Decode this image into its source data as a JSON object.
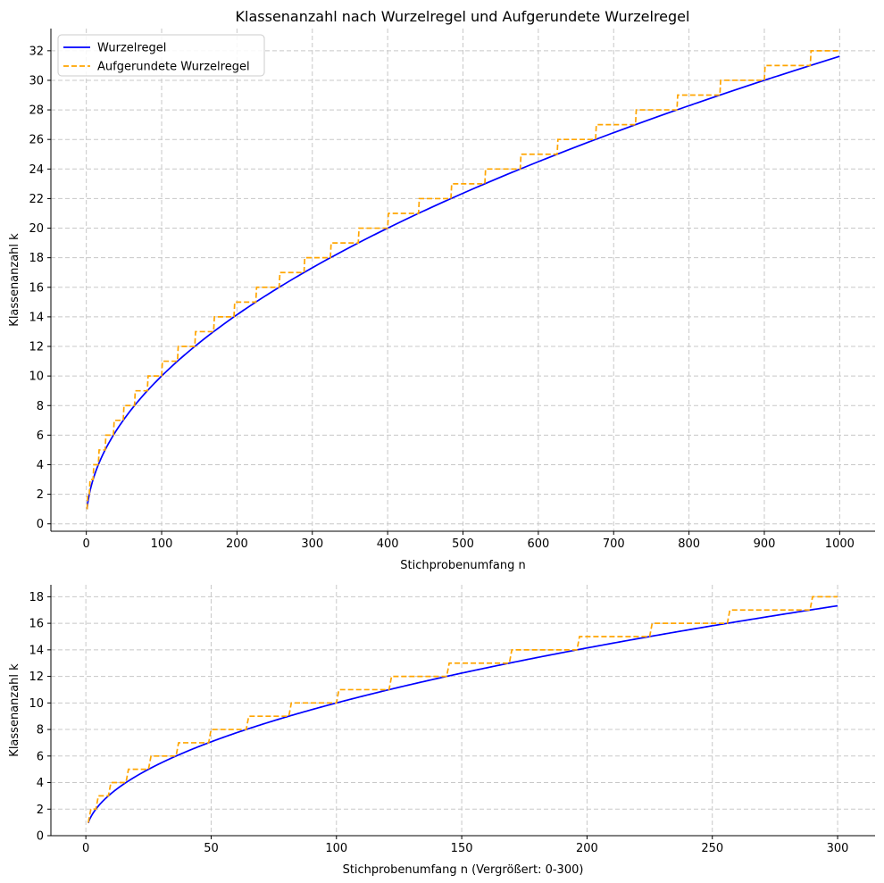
{
  "figure": {
    "title": "Klassenanzahl nach Wurzelregel und Aufgerundete Wurzelregel"
  },
  "chart_data": [
    {
      "type": "line",
      "title": "Klassenanzahl nach Wurzelregel und Aufgerundete Wurzelregel",
      "xlabel": "Stichprobenumfang n",
      "ylabel": "Klassenanzahl k",
      "xlim": [
        -47,
        1047
      ],
      "ylim": [
        -0.5,
        33.5
      ],
      "xticks": [
        0,
        100,
        200,
        300,
        400,
        500,
        600,
        700,
        800,
        900,
        1000
      ],
      "yticks": [
        0,
        2,
        4,
        6,
        8,
        10,
        12,
        14,
        16,
        18,
        20,
        22,
        24,
        26,
        28,
        30,
        32
      ],
      "n_range": [
        1,
        1000
      ],
      "grid": true,
      "legend": "top-left",
      "series": [
        {
          "name": "Wurzelregel",
          "formula": "k = sqrt(n)",
          "style": "solid",
          "color": "#0000ff",
          "points": [
            [
              1,
              1
            ],
            [
              4,
              2
            ],
            [
              9,
              3
            ],
            [
              16,
              4
            ],
            [
              25,
              5
            ],
            [
              36,
              6
            ],
            [
              49,
              7
            ],
            [
              64,
              8
            ],
            [
              81,
              9
            ],
            [
              100,
              10
            ],
            [
              121,
              11
            ],
            [
              144,
              12
            ],
            [
              169,
              13
            ],
            [
              196,
              14
            ],
            [
              225,
              15
            ],
            [
              256,
              16
            ],
            [
              289,
              17
            ],
            [
              324,
              18
            ],
            [
              361,
              19
            ],
            [
              400,
              20
            ],
            [
              441,
              21
            ],
            [
              484,
              22
            ],
            [
              529,
              23
            ],
            [
              576,
              24
            ],
            [
              625,
              25
            ],
            [
              676,
              26
            ],
            [
              729,
              27
            ],
            [
              784,
              28
            ],
            [
              841,
              29
            ],
            [
              900,
              30
            ],
            [
              961,
              31
            ],
            [
              1000,
              31.62
            ]
          ]
        },
        {
          "name": "Aufgerundete Wurzelregel",
          "formula": "k = ceil(sqrt(n))",
          "style": "dashed",
          "color": "#ffa500",
          "steps": [
            [
              1,
              1
            ],
            [
              2,
              2
            ],
            [
              5,
              3
            ],
            [
              10,
              4
            ],
            [
              17,
              5
            ],
            [
              26,
              6
            ],
            [
              37,
              7
            ],
            [
              50,
              8
            ],
            [
              65,
              9
            ],
            [
              82,
              10
            ],
            [
              101,
              11
            ],
            [
              122,
              12
            ],
            [
              145,
              13
            ],
            [
              170,
              14
            ],
            [
              197,
              15
            ],
            [
              226,
              16
            ],
            [
              257,
              17
            ],
            [
              290,
              18
            ],
            [
              325,
              19
            ],
            [
              362,
              20
            ],
            [
              401,
              21
            ],
            [
              442,
              22
            ],
            [
              485,
              23
            ],
            [
              530,
              24
            ],
            [
              577,
              25
            ],
            [
              626,
              26
            ],
            [
              677,
              27
            ],
            [
              730,
              28
            ],
            [
              785,
              29
            ],
            [
              842,
              30
            ],
            [
              901,
              31
            ],
            [
              962,
              32
            ]
          ]
        }
      ]
    },
    {
      "type": "line",
      "title": "",
      "xlabel": "Stichprobenumfang n (Vergrößert: 0-300)",
      "ylabel": "Klassenanzahl k",
      "xlim": [
        -13.95,
        314.95
      ],
      "ylim": [
        0,
        18.9
      ],
      "xticks": [
        0,
        50,
        100,
        150,
        200,
        250,
        300
      ],
      "yticks": [
        0,
        2,
        4,
        6,
        8,
        10,
        12,
        14,
        16,
        18
      ],
      "n_range": [
        1,
        300
      ],
      "grid": true,
      "legend": "none",
      "series": [
        {
          "name": "Wurzelregel",
          "formula": "k = sqrt(n)",
          "style": "solid",
          "color": "#0000ff",
          "points": [
            [
              1,
              1
            ],
            [
              4,
              2
            ],
            [
              9,
              3
            ],
            [
              16,
              4
            ],
            [
              25,
              5
            ],
            [
              36,
              6
            ],
            [
              49,
              7
            ],
            [
              64,
              8
            ],
            [
              81,
              9
            ],
            [
              100,
              10
            ],
            [
              121,
              11
            ],
            [
              144,
              12
            ],
            [
              169,
              13
            ],
            [
              196,
              14
            ],
            [
              225,
              15
            ],
            [
              256,
              16
            ],
            [
              289,
              17
            ],
            [
              300,
              17.32
            ]
          ]
        },
        {
          "name": "Aufgerundete Wurzelregel",
          "formula": "k = ceil(sqrt(n))",
          "style": "dashed",
          "color": "#ffa500",
          "steps": [
            [
              1,
              1
            ],
            [
              2,
              2
            ],
            [
              5,
              3
            ],
            [
              10,
              4
            ],
            [
              17,
              5
            ],
            [
              26,
              6
            ],
            [
              37,
              7
            ],
            [
              50,
              8
            ],
            [
              65,
              9
            ],
            [
              82,
              10
            ],
            [
              101,
              11
            ],
            [
              122,
              12
            ],
            [
              145,
              13
            ],
            [
              170,
              14
            ],
            [
              197,
              15
            ],
            [
              226,
              16
            ],
            [
              257,
              17
            ],
            [
              290,
              18
            ]
          ]
        }
      ]
    }
  ]
}
